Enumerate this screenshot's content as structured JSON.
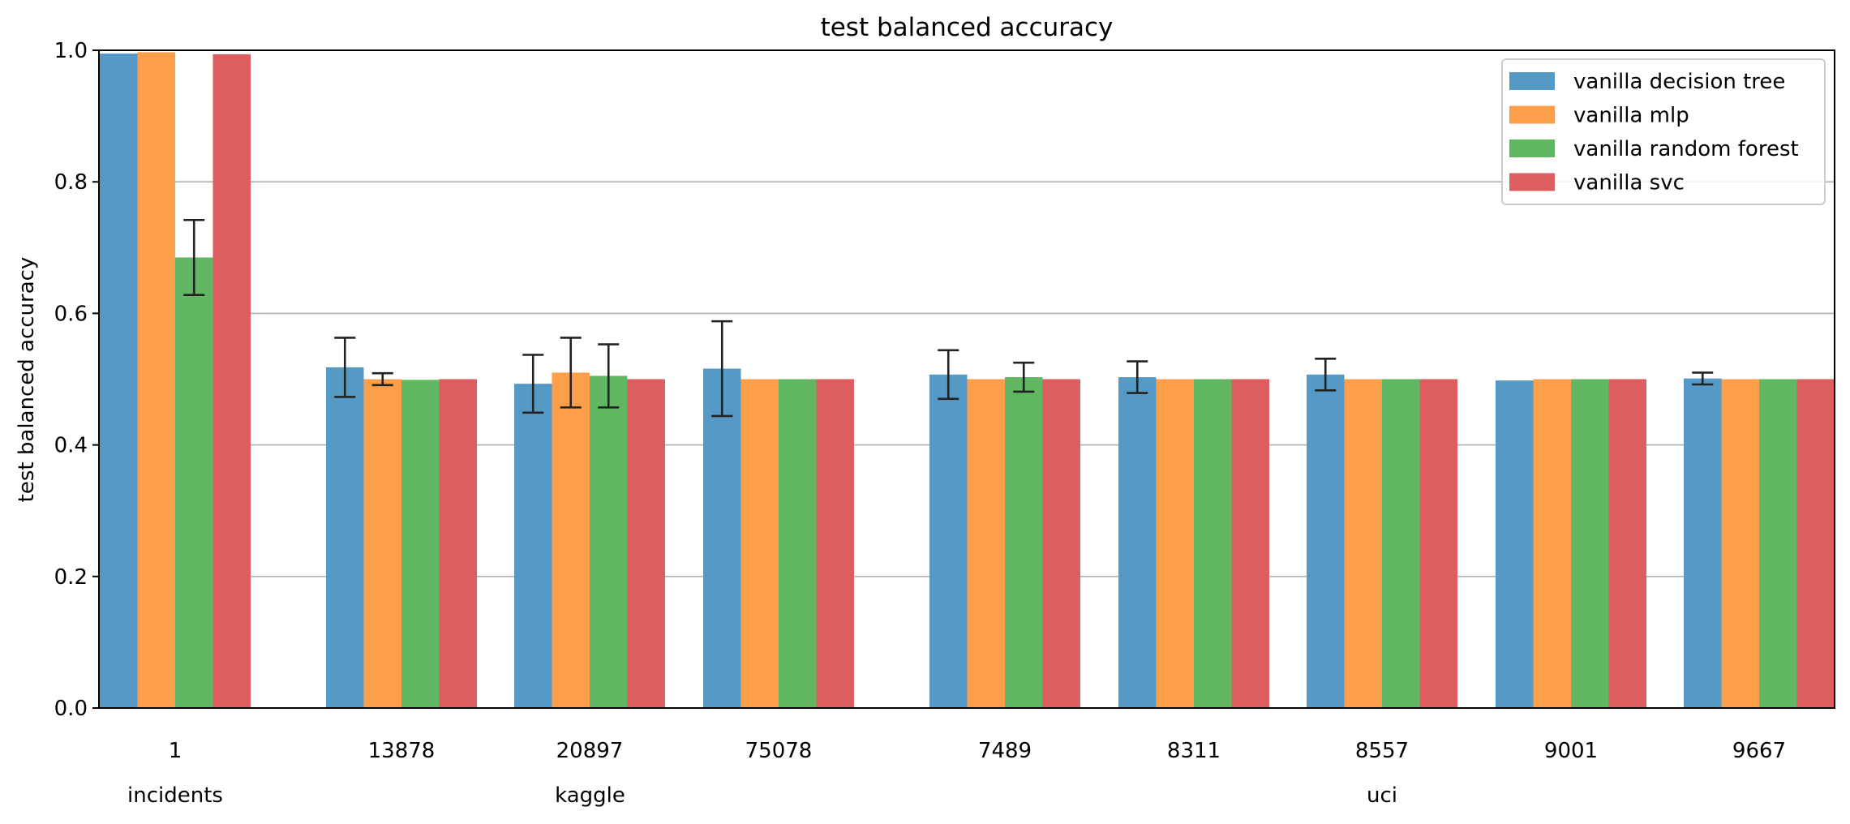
{
  "chart_data": {
    "type": "bar",
    "title": "test balanced accuracy",
    "ylabel": "test balanced accuracy",
    "xlabel": "",
    "ylim": [
      0,
      1.0
    ],
    "yticks": [
      "0.0",
      "0.2",
      "0.4",
      "0.6",
      "0.8",
      "1.0"
    ],
    "grid": "horizontal",
    "legend_position": "top-right",
    "categories": [
      "1",
      "13878",
      "20897",
      "75078",
      "7489",
      "8311",
      "8557",
      "9001",
      "9667"
    ],
    "groups": [
      {
        "label": "incidents",
        "members": [
          "1"
        ]
      },
      {
        "label": "kaggle",
        "members": [
          "13878",
          "20897",
          "75078"
        ]
      },
      {
        "label": "uci",
        "members": [
          "7489",
          "8311",
          "8557",
          "9001",
          "9667"
        ]
      }
    ],
    "series": [
      {
        "name": "vanilla decision tree",
        "color": "#5599c7",
        "values": [
          0.995,
          0.518,
          0.493,
          0.516,
          0.507,
          0.503,
          0.507,
          0.498,
          0.501
        ],
        "errors": [
          null,
          0.045,
          0.044,
          0.072,
          0.037,
          0.024,
          0.024,
          null,
          0.009
        ]
      },
      {
        "name": "vanilla mlp",
        "color": "#fd9f4a",
        "values": [
          0.997,
          0.5,
          0.51,
          0.5,
          0.5,
          0.5,
          0.5,
          0.5,
          0.5
        ],
        "errors": [
          null,
          0.009,
          0.053,
          null,
          null,
          null,
          null,
          null,
          null
        ]
      },
      {
        "name": "vanilla random forest",
        "color": "#62b762",
        "values": [
          0.685,
          0.499,
          0.505,
          0.5,
          0.503,
          0.5,
          0.5,
          0.5,
          0.5
        ],
        "errors": [
          0.057,
          null,
          0.048,
          null,
          0.022,
          null,
          null,
          null,
          null
        ]
      },
      {
        "name": "vanilla svc",
        "color": "#de5d5e",
        "values": [
          0.994,
          0.5,
          0.5,
          0.5,
          0.5,
          0.5,
          0.5,
          0.5,
          0.5
        ],
        "errors": [
          null,
          null,
          null,
          null,
          null,
          null,
          null,
          null,
          null
        ]
      }
    ]
  }
}
